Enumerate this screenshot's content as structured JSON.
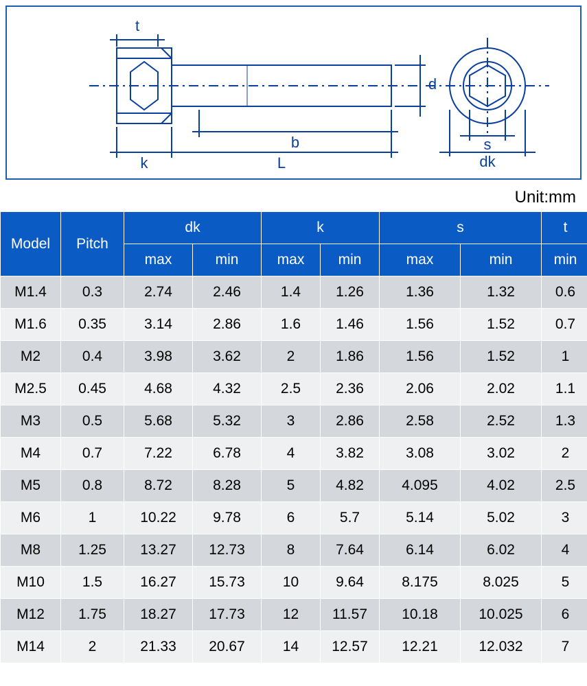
{
  "unit_label": "Unit:mm",
  "diagram": {
    "labels": {
      "t": "t",
      "k": "k",
      "L": "L",
      "b": "b",
      "d": "d",
      "s": "s",
      "dk": "dk"
    },
    "stroke": "#0a3f9e",
    "fill_head": "#cfd9ef",
    "fill_thread": "#e4e9f6"
  },
  "table": {
    "header_bg": "#0a5cc4",
    "header_fg": "#ffffff",
    "row_odd_bg": "#d4d7db",
    "row_even_bg": "#eff0f2",
    "columns": {
      "model": "Model",
      "pitch": "Pitch",
      "dk": "dk",
      "k": "k",
      "s": "s",
      "t": "t",
      "max": "max",
      "min": "min"
    },
    "rows": [
      {
        "model": "M1.4",
        "pitch": "0.3",
        "dk_max": "2.74",
        "dk_min": "2.46",
        "k_max": "1.4",
        "k_min": "1.26",
        "s_max": "1.36",
        "s_min": "1.32",
        "t_min": "0.6"
      },
      {
        "model": "M1.6",
        "pitch": "0.35",
        "dk_max": "3.14",
        "dk_min": "2.86",
        "k_max": "1.6",
        "k_min": "1.46",
        "s_max": "1.56",
        "s_min": "1.52",
        "t_min": "0.7"
      },
      {
        "model": "M2",
        "pitch": "0.4",
        "dk_max": "3.98",
        "dk_min": "3.62",
        "k_max": "2",
        "k_min": "1.86",
        "s_max": "1.56",
        "s_min": "1.52",
        "t_min": "1"
      },
      {
        "model": "M2.5",
        "pitch": "0.45",
        "dk_max": "4.68",
        "dk_min": "4.32",
        "k_max": "2.5",
        "k_min": "2.36",
        "s_max": "2.06",
        "s_min": "2.02",
        "t_min": "1.1"
      },
      {
        "model": "M3",
        "pitch": "0.5",
        "dk_max": "5.68",
        "dk_min": "5.32",
        "k_max": "3",
        "k_min": "2.86",
        "s_max": "2.58",
        "s_min": "2.52",
        "t_min": "1.3"
      },
      {
        "model": "M4",
        "pitch": "0.7",
        "dk_max": "7.22",
        "dk_min": "6.78",
        "k_max": "4",
        "k_min": "3.82",
        "s_max": "3.08",
        "s_min": "3.02",
        "t_min": "2"
      },
      {
        "model": "M5",
        "pitch": "0.8",
        "dk_max": "8.72",
        "dk_min": "8.28",
        "k_max": "5",
        "k_min": "4.82",
        "s_max": "4.095",
        "s_min": "4.02",
        "t_min": "2.5"
      },
      {
        "model": "M6",
        "pitch": "1",
        "dk_max": "10.22",
        "dk_min": "9.78",
        "k_max": "6",
        "k_min": "5.7",
        "s_max": "5.14",
        "s_min": "5.02",
        "t_min": "3"
      },
      {
        "model": "M8",
        "pitch": "1.25",
        "dk_max": "13.27",
        "dk_min": "12.73",
        "k_max": "8",
        "k_min": "7.64",
        "s_max": "6.14",
        "s_min": "6.02",
        "t_min": "4"
      },
      {
        "model": "M10",
        "pitch": "1.5",
        "dk_max": "16.27",
        "dk_min": "15.73",
        "k_max": "10",
        "k_min": "9.64",
        "s_max": "8.175",
        "s_min": "8.025",
        "t_min": "5"
      },
      {
        "model": "M12",
        "pitch": "1.75",
        "dk_max": "18.27",
        "dk_min": "17.73",
        "k_max": "12",
        "k_min": "11.57",
        "s_max": "10.18",
        "s_min": "10.025",
        "t_min": "6"
      },
      {
        "model": "M14",
        "pitch": "2",
        "dk_max": "21.33",
        "dk_min": "20.67",
        "k_max": "14",
        "k_min": "12.57",
        "s_max": "12.21",
        "s_min": "12.032",
        "t_min": "7"
      }
    ]
  }
}
